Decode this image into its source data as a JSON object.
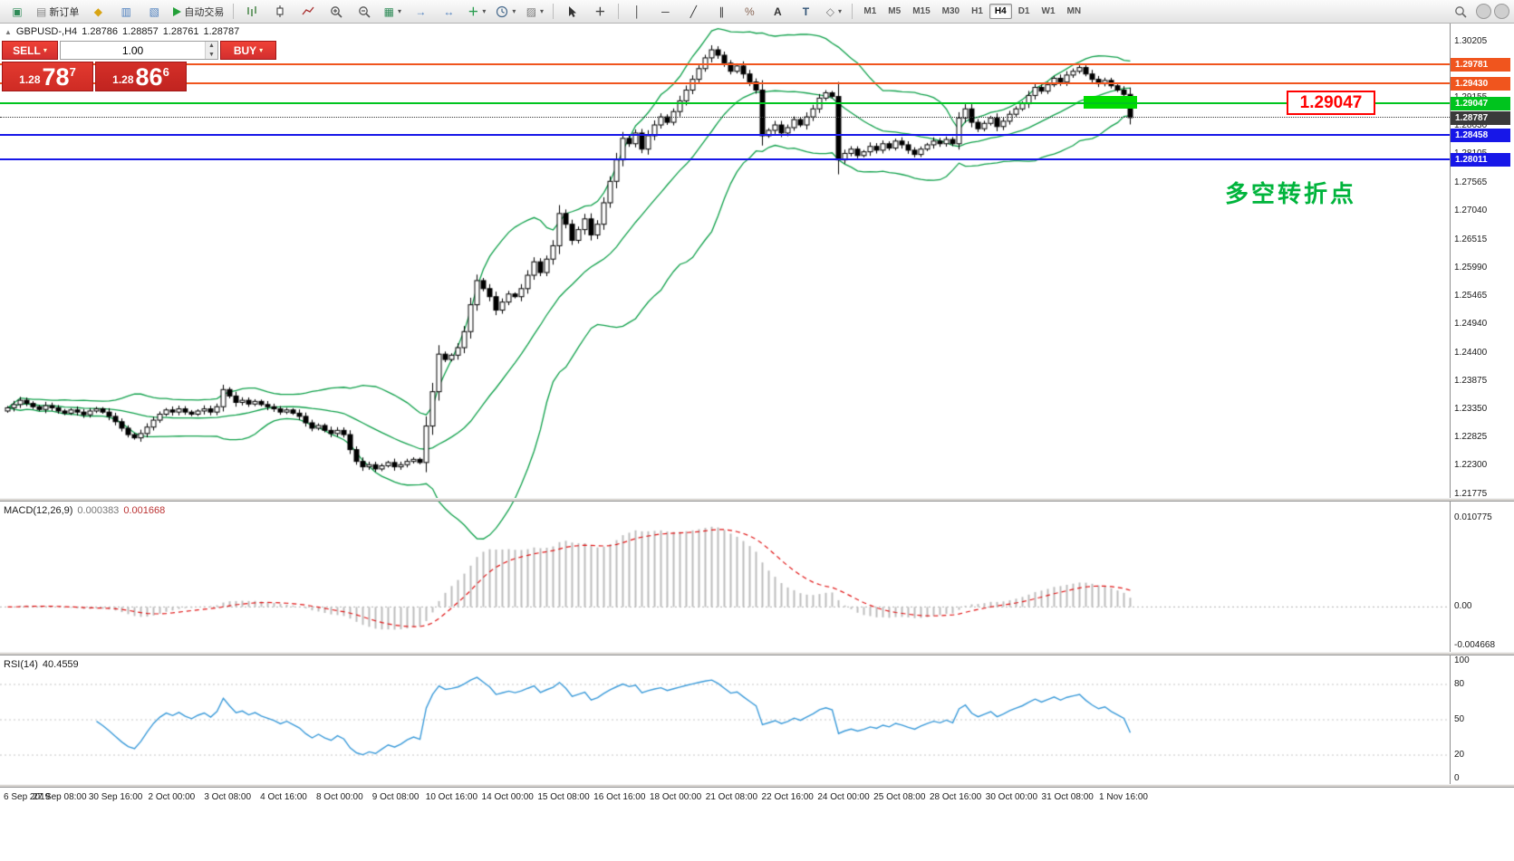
{
  "toolbar": {
    "new_order_label": "新订单",
    "autotrading_label": "自动交易",
    "timeframes": [
      "M1",
      "M5",
      "M15",
      "M30",
      "H1",
      "H4",
      "D1",
      "W1",
      "MN"
    ],
    "active_timeframe": "H4"
  },
  "chart_header": {
    "symbol": "GBPUSD-,H4",
    "open": "1.28786",
    "high": "1.28857",
    "low": "1.28761",
    "close": "1.28787"
  },
  "trade_panel": {
    "sell_label": "SELL",
    "buy_label": "BUY",
    "volume": "1.00",
    "sell_price": {
      "prefix": "1.28",
      "big": "78",
      "sup": "7"
    },
    "buy_price": {
      "prefix": "1.28",
      "big": "86",
      "sup": "6"
    }
  },
  "indicators": {
    "macd": {
      "label": "MACD(12,26,9)",
      "value_main": "0.000383",
      "value_signal": "0.001668",
      "fast": 12,
      "slow": 26,
      "signal": 9
    },
    "rsi": {
      "label": "RSI(14)",
      "value": "40.4559",
      "period": 14
    },
    "bollinger": {
      "period": 20,
      "deviation": 2
    }
  },
  "axes": {
    "price_labels": [
      "1.30205",
      "1.29680",
      "1.29155",
      "1.28630",
      "1.28105",
      "1.27565",
      "1.27040",
      "1.26515",
      "1.25990",
      "1.25465",
      "1.24940",
      "1.24400",
      "1.23875",
      "1.23350",
      "1.22825",
      "1.22300",
      "1.21775"
    ],
    "macd_labels": [
      {
        "text": "0.010775",
        "value": 0.010775
      },
      {
        "text": "0.00",
        "value": 0
      },
      {
        "text": "-0.004668",
        "value": -0.004668
      }
    ],
    "rsi_labels": [
      100,
      80,
      50,
      20,
      0
    ],
    "time_labels": [
      "6 Sep 2019",
      "27 Sep 08:00",
      "30 Sep 16:00",
      "2 Oct 00:00",
      "3 Oct 08:00",
      "4 Oct 16:00",
      "8 Oct 00:00",
      "9 Oct 08:00",
      "10 Oct 16:00",
      "14 Oct 00:00",
      "15 Oct 08:00",
      "16 Oct 16:00",
      "18 Oct 00:00",
      "21 Oct 08:00",
      "22 Oct 16:00",
      "24 Oct 00:00",
      "25 Oct 08:00",
      "28 Oct 16:00",
      "30 Oct 00:00",
      "31 Oct 08:00",
      "1 Nov 16:00"
    ]
  },
  "annotations": {
    "pivot_text": "多空转折点",
    "callout_price": "1.29047"
  },
  "theme": {
    "bull": "#ffffff",
    "bear": "#000000",
    "wick": "#000000",
    "bollinger": "#0fa04a",
    "macd_hist": "#bdbdbd",
    "macd_signal": "#e01515",
    "rsi": "#3a9ad9",
    "grid": "#c4c4c4",
    "sell_buy_red": "#d93025"
  },
  "chart_data": {
    "type": "candlestick",
    "symbol": "GBPUSD",
    "timeframe": "H4",
    "price_axis_range": {
      "top": 1.3054,
      "bottom": 1.217
    },
    "closes": [
      1.2338,
      1.2344,
      1.2352,
      1.2346,
      1.234,
      1.2335,
      1.2342,
      1.2338,
      1.2332,
      1.2328,
      1.2334,
      1.233,
      1.2325,
      1.2332,
      1.2336,
      1.233,
      1.2322,
      1.2312,
      1.23,
      1.2288,
      1.2282,
      1.229,
      1.2302,
      1.2315,
      1.2326,
      1.2334,
      1.233,
      1.2336,
      1.233,
      1.2326,
      1.2332,
      1.2336,
      1.233,
      1.234,
      1.2372,
      1.236,
      1.2348,
      1.2352,
      1.2345,
      1.235,
      1.2344,
      1.234,
      1.2336,
      1.233,
      1.2334,
      1.2328,
      1.2322,
      1.231,
      1.23,
      1.2305,
      1.2296,
      1.229,
      1.2296,
      1.2288,
      1.226,
      1.2238,
      1.2228,
      1.2232,
      1.2224,
      1.223,
      1.2236,
      1.2228,
      1.2232,
      1.2238,
      1.2242,
      1.2236,
      1.2304,
      1.2368,
      1.2438,
      1.2428,
      1.2436,
      1.245,
      1.248,
      1.253,
      1.2575,
      1.256,
      1.2545,
      1.252,
      1.2535,
      1.255,
      1.2545,
      1.256,
      1.2585,
      1.261,
      1.259,
      1.2615,
      1.264,
      1.27,
      1.268,
      1.265,
      1.267,
      1.269,
      1.266,
      1.268,
      1.272,
      1.276,
      1.28,
      1.284,
      1.283,
      1.285,
      1.282,
      1.2845,
      1.2865,
      1.288,
      1.287,
      1.289,
      1.291,
      1.293,
      1.295,
      1.297,
      1.299,
      1.3005,
      1.2995,
      1.298,
      1.2965,
      1.2975,
      1.296,
      1.2945,
      1.293,
      1.2845,
      1.2855,
      1.2865,
      1.285,
      1.286,
      1.2875,
      1.2865,
      1.288,
      1.2895,
      1.2915,
      1.2925,
      1.2918,
      1.28,
      1.2812,
      1.282,
      1.2808,
      1.2815,
      1.2825,
      1.2818,
      1.283,
      1.2822,
      1.2835,
      1.2828,
      1.2818,
      1.281,
      1.282,
      1.2828,
      1.2835,
      1.283,
      1.2838,
      1.283,
      1.2878,
      1.2895,
      1.287,
      1.2858,
      1.2868,
      1.2878,
      1.2862,
      1.2872,
      1.2885,
      1.2895,
      1.2905,
      1.292,
      1.2935,
      1.2928,
      1.294,
      1.2952,
      1.2945,
      1.2958,
      1.2965,
      1.2972,
      1.296,
      1.295,
      1.2942,
      1.2948,
      1.2938,
      1.293,
      1.2922,
      1.28787
    ],
    "hlines": [
      {
        "price": 1.29781,
        "label": "1.29781",
        "color": "#f0551e"
      },
      {
        "price": 1.2943,
        "label": "1.29430",
        "color": "#f0551e"
      },
      {
        "price": 1.29047,
        "label": "1.29047",
        "color": "#00c41e"
      },
      {
        "price": 1.28787,
        "label": "1.28787",
        "color": "#3a3a3a",
        "style": "dotted"
      },
      {
        "price": 1.28458,
        "label": "1.28458",
        "color": "#1717e8"
      },
      {
        "price": 1.28011,
        "label": "1.28011",
        "color": "#1717e8"
      }
    ],
    "highlight_rect": {
      "price_top": 1.2919,
      "price_bottom": 1.2895,
      "from_candle": 170,
      "to_candle": 178,
      "color": "#00dc00"
    }
  }
}
